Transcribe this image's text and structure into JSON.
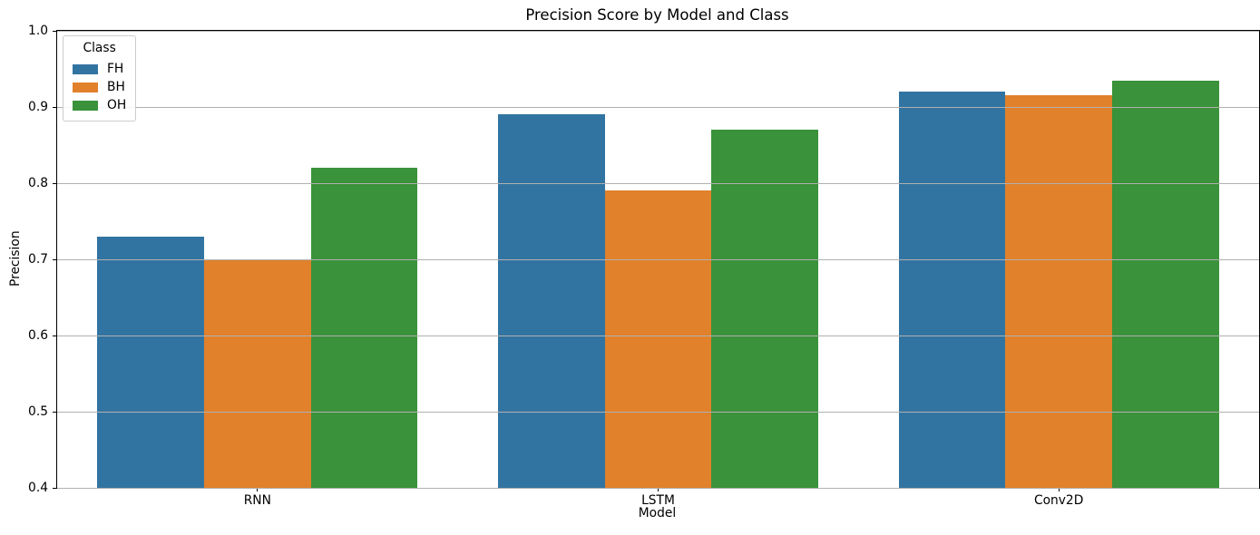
{
  "chart_data": {
    "type": "bar",
    "title": "Precision Score by Model and Class",
    "xlabel": "Model",
    "ylabel": "Precision",
    "categories": [
      "RNN",
      "LSTM",
      "Conv2D"
    ],
    "series": [
      {
        "name": "FH",
        "color": "#3274a1",
        "values": [
          0.73,
          0.89,
          0.92
        ]
      },
      {
        "name": "BH",
        "color": "#e1812c",
        "values": [
          0.7,
          0.79,
          0.915
        ]
      },
      {
        "name": "OH",
        "color": "#3a923a",
        "values": [
          0.82,
          0.87,
          0.935
        ]
      }
    ],
    "ylim": [
      0.4,
      1.0
    ],
    "yticks": [
      0.4,
      0.5,
      0.6,
      0.7,
      0.8,
      0.9,
      1.0
    ],
    "ytick_format_decimals": 1,
    "grid": true,
    "grid_color": "#b0b0b0",
    "grid_above_bars": true,
    "group_width": 0.8,
    "legend": {
      "title": "Class",
      "position": "upper left"
    },
    "spine_color": "#000000",
    "text_color": "#000000",
    "background_color": "#ffffff"
  }
}
